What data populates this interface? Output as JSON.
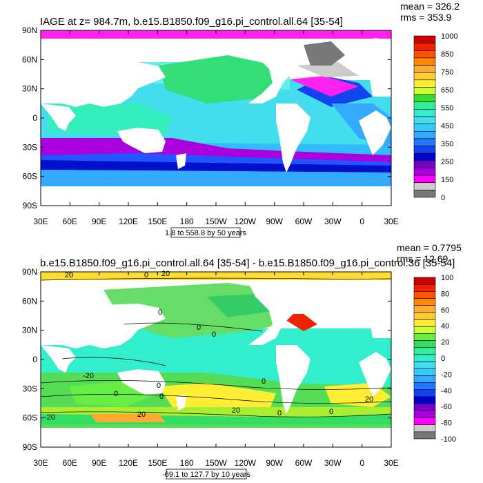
{
  "panels": [
    {
      "title": "IAGE at z= 984.7m, b.e15.B1850.f09_g16.pi_control.all.64 [35-54]",
      "mean": "mean = 326.2",
      "rms": "rms = 353.9",
      "range_label": "1.8 to 558.8 by 50 years",
      "colorbar": {
        "labels": [
          "1000",
          "850",
          "750",
          "650",
          "550",
          "450",
          "350",
          "250",
          "150",
          "0"
        ],
        "colors": [
          "#cc0000",
          "#ee2200",
          "#ff5500",
          "#ff8800",
          "#ffaa33",
          "#ffcc33",
          "#ffee33",
          "#ccff33",
          "#33dd33",
          "#33ee99",
          "#33eecc",
          "#44ddee",
          "#33ccff",
          "#33aaff",
          "#2277ff",
          "#1144ee",
          "#0000cc",
          "#7700cc",
          "#aa00dd",
          "#ff00ff",
          "#cccccc",
          "#777777"
        ]
      }
    },
    {
      "title": "b.e15.B1850.f09_g16.pi_control.all.64 [35-54] - b.e15.B1850.f09_g16.pi_control.36 [35-54]",
      "mean": "mean = 0.7795",
      "rms": "rms = 12.69",
      "range_label": "-69.1 to 127.7 by 10 years",
      "colorbar": {
        "labels": [
          "100",
          "80",
          "60",
          "40",
          "20",
          "0",
          "-20",
          "-40",
          "-60",
          "-80",
          "-100"
        ],
        "colors": [
          "#cc0000",
          "#ee2200",
          "#ff5500",
          "#ff8800",
          "#ffaa33",
          "#ffcc33",
          "#ffee33",
          "#ccff33",
          "#66ee44",
          "#33dd66",
          "#33ee99",
          "#33eecc",
          "#44ddee",
          "#33ccff",
          "#33aaff",
          "#2277ff",
          "#1144ee",
          "#0000cc",
          "#7700cc",
          "#aa00dd",
          "#ff00ff",
          "#cccccc",
          "#777777"
        ]
      },
      "contour_labels": [
        "20",
        "0",
        "20",
        "0",
        "0",
        "0",
        "-20",
        "0",
        "0",
        "0",
        "20",
        "0",
        "0",
        "20",
        "20",
        "0",
        "-20"
      ]
    }
  ],
  "axes": {
    "lon_ticks": [
      "30E",
      "60E",
      "90E",
      "120E",
      "150E",
      "180",
      "150W",
      "120W",
      "90W",
      "60W",
      "30W",
      "0",
      "30E"
    ],
    "lat_ticks": [
      "90N",
      "60N",
      "30N",
      "0",
      "30S",
      "60S",
      "90S"
    ]
  },
  "colors": {
    "land": "#ffffff",
    "frame": "#000000"
  }
}
